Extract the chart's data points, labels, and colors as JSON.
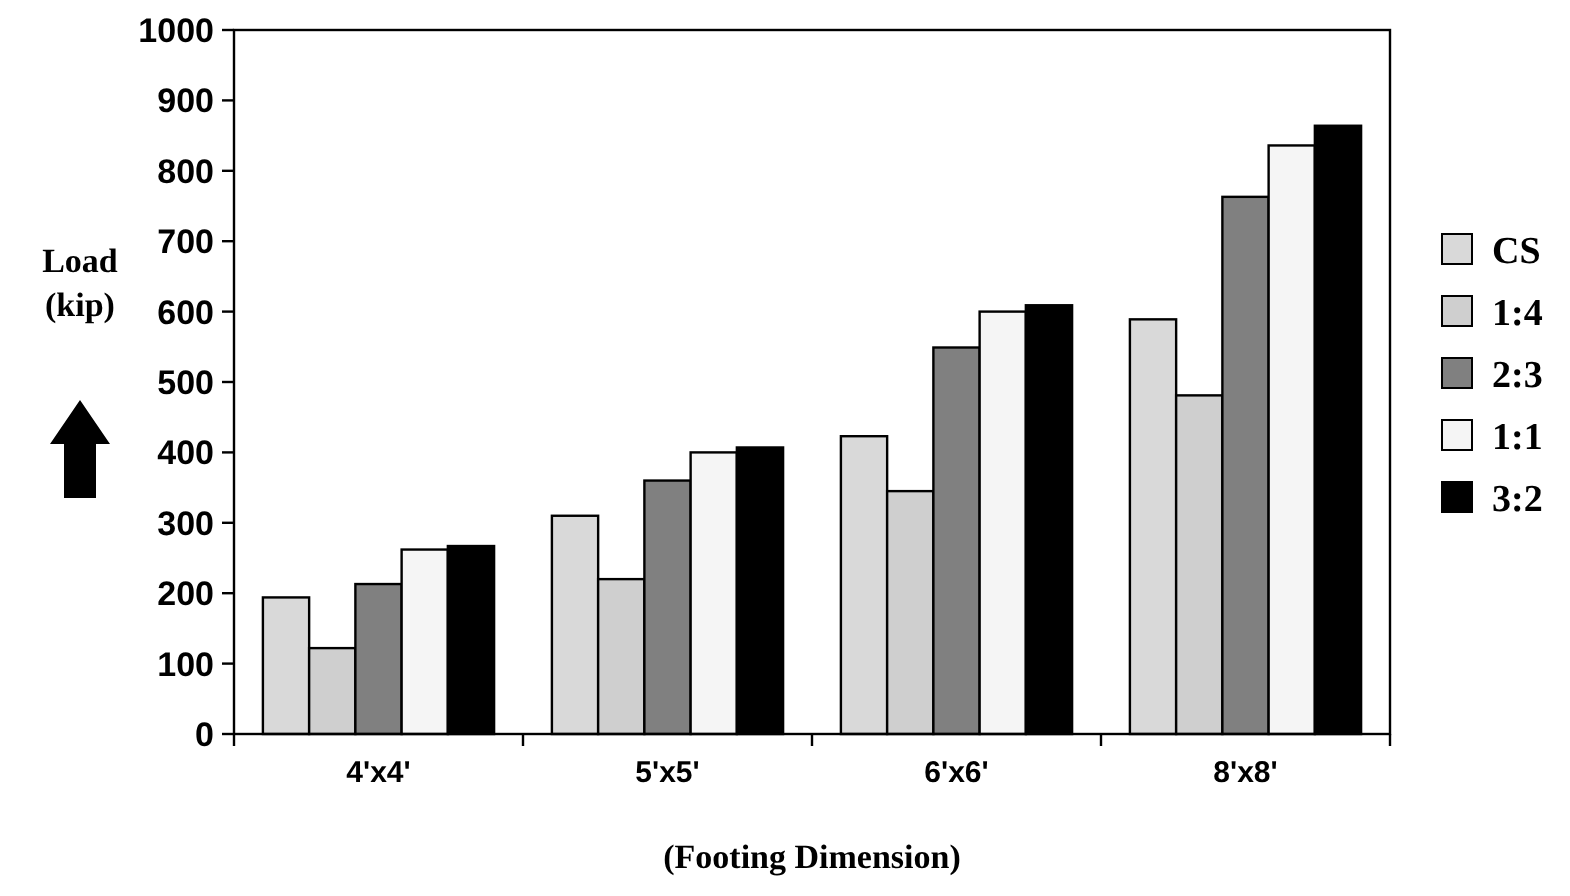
{
  "chart_data": {
    "type": "bar",
    "xlabel": "(Footing Dimension)",
    "ylabel": "Load\n(kip)",
    "categories": [
      "4'x4'",
      "5'x5'",
      "6'x6'",
      "8'x8'"
    ],
    "series": [
      {
        "name": "CS",
        "color": "#d9d9d9",
        "values": [
          194,
          310,
          423,
          589
        ]
      },
      {
        "name": "1:4",
        "color": "#cfcfcf",
        "values": [
          122,
          220,
          345,
          481
        ]
      },
      {
        "name": "2:3",
        "color": "#808080",
        "values": [
          213,
          360,
          549,
          763
        ]
      },
      {
        "name": "1:1",
        "color": "#f5f5f5",
        "values": [
          262,
          400,
          600,
          836
        ]
      },
      {
        "name": "3:2",
        "color": "#000000",
        "values": [
          267,
          407,
          609,
          864
        ]
      }
    ],
    "ylim": [
      0,
      1000
    ],
    "yticks": [
      0,
      100,
      200,
      300,
      400,
      500,
      600,
      700,
      800,
      900,
      1000
    ],
    "grid": false,
    "legend": "right"
  }
}
